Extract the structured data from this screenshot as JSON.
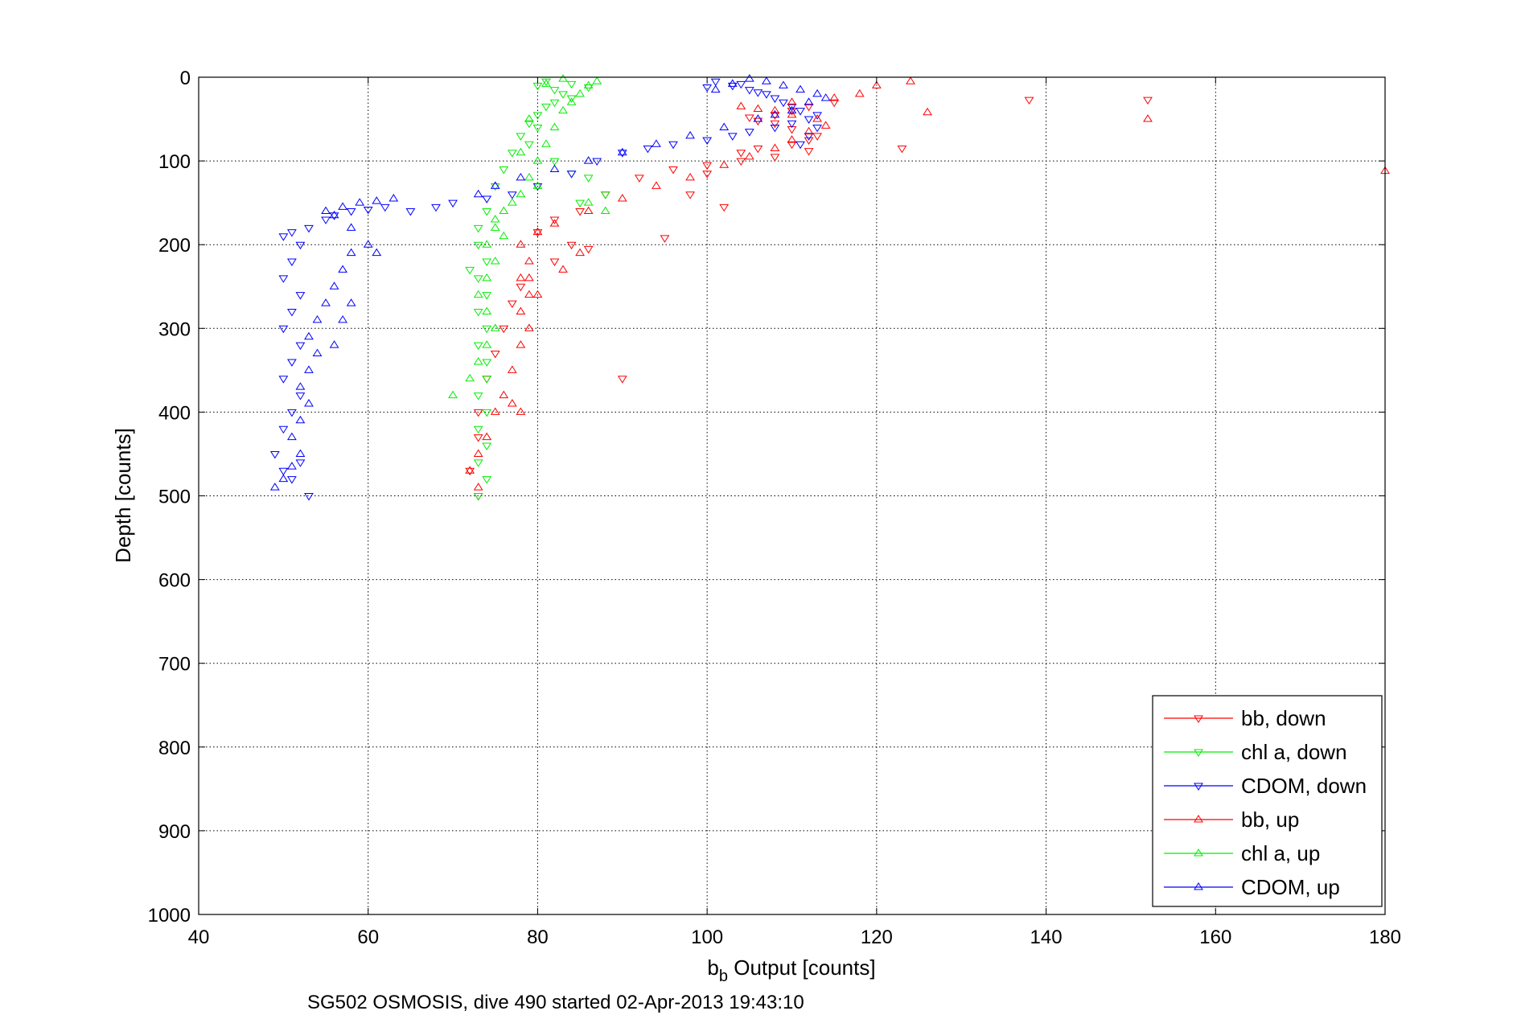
{
  "chart_data": {
    "type": "scatter",
    "xlabel_base": "b",
    "xlabel_sub": "b",
    "xlabel_rest": " Output [counts]",
    "ylabel": "Depth [counts]",
    "caption": "SG502 OSMOSIS, dive 490 started 02-Apr-2013 19:43:10",
    "xlim": [
      40,
      180
    ],
    "ylim": [
      0,
      1000
    ],
    "y_reversed": true,
    "x_ticks": [
      "40",
      "60",
      "80",
      "100",
      "120",
      "140",
      "160",
      "180"
    ],
    "y_ticks": [
      "0",
      "100",
      "200",
      "300",
      "400",
      "500",
      "600",
      "700",
      "800",
      "900",
      "1000"
    ],
    "grid": true,
    "legend_position": "bottom-right",
    "series": [
      {
        "name": "bb, down",
        "color": "#ff0000",
        "marker": "triangle-down",
        "points": [
          [
            84,
            200
          ],
          [
            86,
            205
          ],
          [
            82,
            220
          ],
          [
            78,
            250
          ],
          [
            77,
            270
          ],
          [
            76,
            300
          ],
          [
            75,
            330
          ],
          [
            74,
            360
          ],
          [
            73,
            400
          ],
          [
            73,
            430
          ],
          [
            72,
            470
          ],
          [
            73,
            500
          ],
          [
            90,
            360
          ],
          [
            95,
            192
          ],
          [
            102,
            155
          ],
          [
            98,
            140
          ],
          [
            100,
            115
          ],
          [
            104,
            90
          ],
          [
            106,
            85
          ],
          [
            110,
            80
          ],
          [
            112,
            75
          ],
          [
            113,
            70
          ],
          [
            110,
            62
          ],
          [
            108,
            55
          ],
          [
            106,
            52
          ],
          [
            105,
            48
          ],
          [
            108,
            45
          ],
          [
            110,
            40
          ],
          [
            112,
            35
          ],
          [
            115,
            30
          ],
          [
            138,
            27
          ],
          [
            152,
            27
          ],
          [
            123,
            85
          ],
          [
            112,
            88
          ],
          [
            108,
            95
          ],
          [
            104,
            100
          ],
          [
            100,
            105
          ],
          [
            96,
            110
          ],
          [
            92,
            120
          ],
          [
            88,
            140
          ],
          [
            85,
            160
          ],
          [
            82,
            170
          ],
          [
            80,
            185
          ]
        ]
      },
      {
        "name": "chl a, down",
        "color": "#00ee00",
        "marker": "triangle-down",
        "points": [
          [
            80,
            10
          ],
          [
            82,
            15
          ],
          [
            83,
            20
          ],
          [
            84,
            25
          ],
          [
            81,
            35
          ],
          [
            80,
            45
          ],
          [
            79,
            55
          ],
          [
            78,
            70
          ],
          [
            77,
            90
          ],
          [
            76,
            110
          ],
          [
            75,
            130
          ],
          [
            74,
            160
          ],
          [
            73,
            180
          ],
          [
            73,
            200
          ],
          [
            74,
            220
          ],
          [
            73,
            240
          ],
          [
            74,
            260
          ],
          [
            73,
            280
          ],
          [
            74,
            300
          ],
          [
            73,
            320
          ],
          [
            74,
            340
          ],
          [
            74,
            360
          ],
          [
            73,
            380
          ],
          [
            74,
            400
          ],
          [
            73,
            420
          ],
          [
            74,
            440
          ],
          [
            73,
            460
          ],
          [
            74,
            480
          ],
          [
            73,
            500
          ],
          [
            72,
            230
          ],
          [
            81,
            5
          ],
          [
            84,
            8
          ],
          [
            86,
            12
          ],
          [
            82,
            30
          ],
          [
            80,
            60
          ],
          [
            79,
            80
          ],
          [
            82,
            100
          ],
          [
            84,
            115
          ],
          [
            86,
            120
          ],
          [
            88,
            140
          ],
          [
            85,
            150
          ]
        ]
      },
      {
        "name": "CDOM, down",
        "color": "#0000ff",
        "marker": "triangle-down",
        "points": [
          [
            49,
            450
          ],
          [
            50,
            470
          ],
          [
            51,
            480
          ],
          [
            52,
            460
          ],
          [
            50,
            420
          ],
          [
            51,
            400
          ],
          [
            52,
            380
          ],
          [
            50,
            360
          ],
          [
            51,
            340
          ],
          [
            52,
            320
          ],
          [
            50,
            300
          ],
          [
            51,
            280
          ],
          [
            52,
            260
          ],
          [
            50,
            240
          ],
          [
            51,
            220
          ],
          [
            52,
            200
          ],
          [
            50,
            190
          ],
          [
            51,
            185
          ],
          [
            53,
            180
          ],
          [
            55,
            170
          ],
          [
            56,
            165
          ],
          [
            58,
            160
          ],
          [
            60,
            158
          ],
          [
            62,
            155
          ],
          [
            65,
            160
          ],
          [
            68,
            155
          ],
          [
            70,
            150
          ],
          [
            74,
            145
          ],
          [
            77,
            140
          ],
          [
            80,
            130
          ],
          [
            84,
            115
          ],
          [
            87,
            100
          ],
          [
            90,
            90
          ],
          [
            93,
            85
          ],
          [
            96,
            80
          ],
          [
            100,
            75
          ],
          [
            103,
            70
          ],
          [
            105,
            65
          ],
          [
            108,
            60
          ],
          [
            110,
            55
          ],
          [
            112,
            50
          ],
          [
            113,
            45
          ],
          [
            111,
            40
          ],
          [
            109,
            30
          ],
          [
            107,
            20
          ],
          [
            105,
            15
          ],
          [
            103,
            10
          ],
          [
            101,
            5
          ],
          [
            100,
            12
          ],
          [
            104,
            8
          ],
          [
            106,
            18
          ],
          [
            108,
            25
          ],
          [
            110,
            35
          ],
          [
            112,
            70
          ],
          [
            111,
            80
          ],
          [
            113,
            60
          ],
          [
            53,
            500
          ]
        ]
      },
      {
        "name": "bb, up",
        "color": "#ff0000",
        "marker": "triangle-up",
        "points": [
          [
            73,
            490
          ],
          [
            72,
            470
          ],
          [
            73,
            450
          ],
          [
            74,
            430
          ],
          [
            75,
            400
          ],
          [
            76,
            380
          ],
          [
            77,
            350
          ],
          [
            78,
            320
          ],
          [
            79,
            300
          ],
          [
            78,
            280
          ],
          [
            79,
            260
          ],
          [
            78,
            240
          ],
          [
            79,
            220
          ],
          [
            78,
            200
          ],
          [
            80,
            185
          ],
          [
            82,
            175
          ],
          [
            86,
            160
          ],
          [
            90,
            145
          ],
          [
            94,
            130
          ],
          [
            98,
            120
          ],
          [
            102,
            105
          ],
          [
            105,
            95
          ],
          [
            108,
            85
          ],
          [
            110,
            75
          ],
          [
            112,
            65
          ],
          [
            114,
            58
          ],
          [
            113,
            50
          ],
          [
            110,
            45
          ],
          [
            108,
            40
          ],
          [
            106,
            38
          ],
          [
            104,
            35
          ],
          [
            110,
            30
          ],
          [
            115,
            25
          ],
          [
            118,
            20
          ],
          [
            120,
            10
          ],
          [
            124,
            5
          ],
          [
            126,
            42
          ],
          [
            152,
            50
          ],
          [
            180,
            112
          ],
          [
            85,
            210
          ],
          [
            83,
            230
          ],
          [
            80,
            260
          ],
          [
            79,
            240
          ],
          [
            78,
            400
          ],
          [
            77,
            390
          ]
        ]
      },
      {
        "name": "chl a, up",
        "color": "#00ee00",
        "marker": "triangle-up",
        "points": [
          [
            70,
            380
          ],
          [
            72,
            360
          ],
          [
            73,
            340
          ],
          [
            74,
            320
          ],
          [
            75,
            300
          ],
          [
            74,
            280
          ],
          [
            73,
            260
          ],
          [
            74,
            240
          ],
          [
            75,
            220
          ],
          [
            74,
            200
          ],
          [
            75,
            180
          ],
          [
            76,
            160
          ],
          [
            77,
            150
          ],
          [
            78,
            140
          ],
          [
            79,
            120
          ],
          [
            80,
            100
          ],
          [
            81,
            80
          ],
          [
            82,
            60
          ],
          [
            83,
            40
          ],
          [
            84,
            30
          ],
          [
            85,
            20
          ],
          [
            86,
            10
          ],
          [
            87,
            5
          ],
          [
            83,
            2
          ],
          [
            81,
            8
          ],
          [
            79,
            50
          ],
          [
            78,
            90
          ],
          [
            80,
            130
          ],
          [
            86,
            150
          ],
          [
            88,
            160
          ],
          [
            75,
            170
          ],
          [
            76,
            190
          ]
        ]
      },
      {
        "name": "CDOM, up",
        "color": "#0000ff",
        "marker": "triangle-up",
        "points": [
          [
            49,
            490
          ],
          [
            50,
            480
          ],
          [
            51,
            465
          ],
          [
            52,
            450
          ],
          [
            51,
            430
          ],
          [
            52,
            410
          ],
          [
            53,
            390
          ],
          [
            52,
            370
          ],
          [
            53,
            350
          ],
          [
            54,
            330
          ],
          [
            53,
            310
          ],
          [
            54,
            290
          ],
          [
            55,
            270
          ],
          [
            56,
            250
          ],
          [
            57,
            230
          ],
          [
            58,
            210
          ],
          [
            60,
            200
          ],
          [
            58,
            180
          ],
          [
            56,
            165
          ],
          [
            55,
            160
          ],
          [
            57,
            155
          ],
          [
            59,
            150
          ],
          [
            61,
            148
          ],
          [
            63,
            145
          ],
          [
            73,
            140
          ],
          [
            75,
            130
          ],
          [
            78,
            120
          ],
          [
            82,
            110
          ],
          [
            86,
            100
          ],
          [
            90,
            90
          ],
          [
            94,
            80
          ],
          [
            98,
            70
          ],
          [
            102,
            60
          ],
          [
            106,
            50
          ],
          [
            108,
            45
          ],
          [
            110,
            40
          ],
          [
            112,
            30
          ],
          [
            114,
            25
          ],
          [
            113,
            20
          ],
          [
            111,
            15
          ],
          [
            109,
            10
          ],
          [
            107,
            5
          ],
          [
            105,
            2
          ],
          [
            103,
            8
          ],
          [
            101,
            15
          ],
          [
            56,
            320
          ],
          [
            58,
            270
          ],
          [
            61,
            210
          ],
          [
            57,
            290
          ]
        ]
      }
    ]
  }
}
